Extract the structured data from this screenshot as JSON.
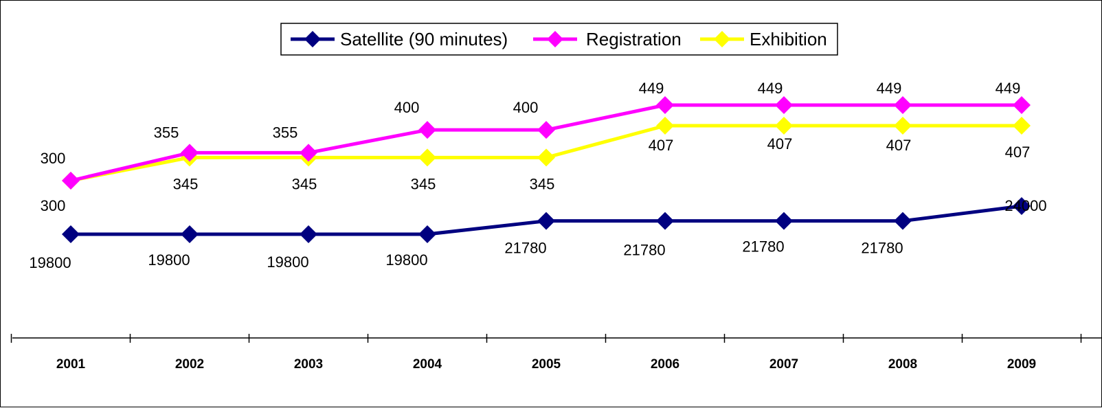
{
  "chart_data": {
    "type": "line",
    "categories": [
      "2001",
      "2002",
      "2003",
      "2004",
      "2005",
      "2006",
      "2007",
      "2008",
      "2009"
    ],
    "series": [
      {
        "name": "Satellite (90 minutes)",
        "values": [
          19800,
          19800,
          19800,
          19800,
          21780,
          21780,
          21780,
          21780,
          24000
        ],
        "color": "#000080",
        "labels": [
          "19800",
          "19800",
          "19800",
          "19800",
          "21780",
          "21780",
          "21780",
          "21780",
          "24000"
        ]
      },
      {
        "name": "Registration",
        "values": [
          300,
          355,
          355,
          400,
          400,
          449,
          449,
          449,
          449
        ],
        "color": "#FF00FF",
        "labels": [
          "300",
          "355",
          "355",
          "400",
          "400",
          "449",
          "449",
          "449",
          "449"
        ]
      },
      {
        "name": "Exhibition",
        "values": [
          300,
          345,
          345,
          345,
          345,
          407,
          407,
          407,
          407
        ],
        "color": "#FFFF00",
        "labels": [
          "300",
          "345",
          "345",
          "345",
          "345",
          "407",
          "407",
          "407",
          "407"
        ]
      }
    ],
    "legend_position": "top-center",
    "grid": false,
    "y_axis_visible": false
  }
}
